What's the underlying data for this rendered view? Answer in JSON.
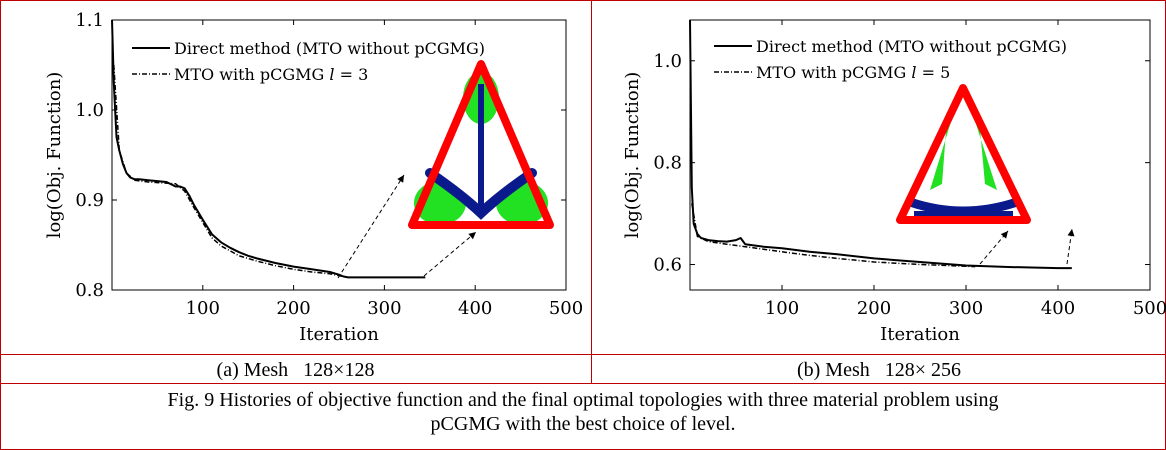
{
  "figure": {
    "caption_a": "(a) Mesh   128×128",
    "caption_b": "(b) Mesh   128× 256",
    "caption_main_line1": "Fig. 9 Histories of objective function and the final optimal topologies with three material problem using",
    "caption_main_line2": "pCGMG with the best choice of level."
  },
  "colors": {
    "border": "#c00000",
    "frame_red": "#ff0000",
    "material_green": "#22e022",
    "material_blue": "#0a1a8c"
  },
  "chart_data": [
    {
      "type": "line",
      "xlabel": "Iteration",
      "ylabel": "log(Obj. Function)",
      "xlim": [
        0,
        500
      ],
      "ylim": [
        0.8,
        1.1
      ],
      "xticks": [
        100,
        200,
        300,
        400,
        500
      ],
      "yticks": [
        0.8,
        0.9,
        1.0,
        1.1
      ],
      "ytick_labels": [
        "0.8",
        "0.9",
        "1.0",
        "1.1"
      ],
      "legend_position": "top-right",
      "series": [
        {
          "name": "Direct method (MTO without pCGMG)",
          "style": "solid",
          "x": [
            0,
            2,
            5,
            8,
            12,
            16,
            20,
            25,
            30,
            40,
            50,
            60,
            70,
            75,
            80,
            85,
            90,
            100,
            110,
            120,
            130,
            140,
            150,
            160,
            180,
            200,
            220,
            240,
            250,
            255,
            260,
            300,
            345
          ],
          "y": [
            1.1,
            1.03,
            0.97,
            0.955,
            0.94,
            0.93,
            0.925,
            0.923,
            0.923,
            0.922,
            0.921,
            0.92,
            0.915,
            0.915,
            0.913,
            0.905,
            0.895,
            0.878,
            0.862,
            0.853,
            0.847,
            0.842,
            0.838,
            0.835,
            0.83,
            0.826,
            0.823,
            0.82,
            0.817,
            0.815,
            0.814,
            0.814,
            0.814
          ]
        },
        {
          "name": "MTO with pCGMG l = 3",
          "style": "dash-dot",
          "x": [
            2,
            8,
            16,
            25,
            40,
            55,
            70,
            80,
            90,
            100,
            110,
            120,
            140,
            160,
            180,
            200,
            220,
            240,
            255
          ],
          "y": [
            1.05,
            0.955,
            0.93,
            0.922,
            0.92,
            0.919,
            0.918,
            0.91,
            0.892,
            0.875,
            0.858,
            0.849,
            0.838,
            0.832,
            0.827,
            0.823,
            0.82,
            0.818,
            0.815
          ]
        }
      ]
    },
    {
      "type": "line",
      "xlabel": "Iteration",
      "ylabel": "log(Obj. Function)",
      "xlim": [
        0,
        500
      ],
      "ylim": [
        0.55,
        1.08
      ],
      "xticks": [
        100,
        200,
        300,
        400,
        500
      ],
      "yticks": [
        0.6,
        0.8,
        1.0
      ],
      "ytick_labels": [
        "0.6",
        "0.8",
        "1.0"
      ],
      "legend_position": "top-right",
      "series": [
        {
          "name": "Direct method (MTO without pCGMG)",
          "style": "solid",
          "x": [
            0,
            2,
            4,
            8,
            12,
            20,
            30,
            40,
            50,
            55,
            60,
            80,
            100,
            130,
            160,
            200,
            250,
            300,
            350,
            400,
            415
          ],
          "y": [
            1.08,
            0.75,
            0.68,
            0.66,
            0.652,
            0.648,
            0.646,
            0.645,
            0.648,
            0.652,
            0.64,
            0.635,
            0.632,
            0.625,
            0.62,
            0.612,
            0.605,
            0.598,
            0.595,
            0.593,
            0.593
          ]
        },
        {
          "name": "MTO with pCGMG l = 5",
          "style": "dash-dot",
          "x": [
            2,
            8,
            20,
            40,
            60,
            80,
            100,
            130,
            160,
            200,
            250,
            310
          ],
          "y": [
            0.72,
            0.655,
            0.645,
            0.64,
            0.635,
            0.63,
            0.625,
            0.618,
            0.612,
            0.605,
            0.6,
            0.596
          ]
        }
      ]
    }
  ]
}
